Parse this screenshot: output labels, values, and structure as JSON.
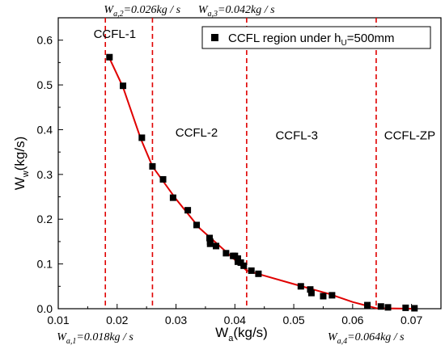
{
  "chart_data": {
    "type": "scatter",
    "xlabel": "W",
    "xlabel_sub": "a",
    "xlabel_unit": "(kg/s)",
    "ylabel": "W",
    "ylabel_sub": "w",
    "ylabel_unit": "(kg/s)",
    "xlim": [
      0.01,
      0.075
    ],
    "ylim": [
      0.0,
      0.65
    ],
    "xticks": [
      "0.01",
      "0.02",
      "0.03",
      "0.04",
      "0.05",
      "0.06",
      "0.07"
    ],
    "yticks": [
      "0.0",
      "0.1",
      "0.2",
      "0.3",
      "0.4",
      "0.5",
      "0.6"
    ],
    "grid": false,
    "legend": {
      "position": "top-right",
      "label_prefix": "CCFL region under h",
      "label_sub": "U",
      "label_suffix": "=500mm"
    },
    "markers": {
      "color": "#000000",
      "points": [
        [
          0.0187,
          0.562
        ],
        [
          0.021,
          0.498
        ],
        [
          0.0242,
          0.382
        ],
        [
          0.026,
          0.318
        ],
        [
          0.0278,
          0.289
        ],
        [
          0.0295,
          0.248
        ],
        [
          0.032,
          0.22
        ],
        [
          0.0335,
          0.187
        ],
        [
          0.0357,
          0.158
        ],
        [
          0.0358,
          0.15
        ],
        [
          0.0358,
          0.145
        ],
        [
          0.0368,
          0.14
        ],
        [
          0.0385,
          0.124
        ],
        [
          0.0397,
          0.118
        ],
        [
          0.04,
          0.118
        ],
        [
          0.0405,
          0.112
        ],
        [
          0.0405,
          0.105
        ],
        [
          0.041,
          0.103
        ],
        [
          0.0415,
          0.096
        ],
        [
          0.0428,
          0.085
        ],
        [
          0.044,
          0.078
        ],
        [
          0.0512,
          0.05
        ],
        [
          0.0528,
          0.043
        ],
        [
          0.053,
          0.035
        ],
        [
          0.055,
          0.028
        ],
        [
          0.0565,
          0.03
        ],
        [
          0.0625,
          0.008
        ],
        [
          0.0648,
          0.005
        ],
        [
          0.066,
          0.003
        ],
        [
          0.069,
          0.002
        ],
        [
          0.0705,
          0.001
        ]
      ]
    },
    "fit_line": {
      "color": "#e00000",
      "points": [
        [
          0.0185,
          0.565
        ],
        [
          0.021,
          0.495
        ],
        [
          0.024,
          0.38
        ],
        [
          0.026,
          0.318
        ],
        [
          0.03,
          0.245
        ],
        [
          0.034,
          0.18
        ],
        [
          0.038,
          0.133
        ],
        [
          0.042,
          0.085
        ],
        [
          0.05,
          0.055
        ],
        [
          0.056,
          0.033
        ],
        [
          0.06,
          0.015
        ],
        [
          0.064,
          0.001
        ],
        [
          0.0705,
          0.0
        ]
      ]
    },
    "vlines": {
      "color": "#e00000",
      "x": [
        0.018,
        0.026,
        0.042,
        0.064
      ]
    },
    "region_labels": [
      {
        "text": "CCFL-1",
        "x": 0.0196,
        "y": 0.605
      },
      {
        "text": "CCFL-2",
        "x": 0.0335,
        "y": 0.385
      },
      {
        "text": "CCFL-3",
        "x": 0.0505,
        "y": 0.378
      },
      {
        "text": "CCFL-ZP",
        "x": 0.0697,
        "y": 0.378
      }
    ],
    "annotations_top": [
      {
        "base": "W",
        "sub": "a,2",
        "value": "=0.026kg / s"
      },
      {
        "base": "W",
        "sub": "a,3",
        "value": "=0.042kg / s"
      }
    ],
    "annotations_bottom": [
      {
        "base": "W",
        "sub": "a,1",
        "value": "=0.018kg / s"
      },
      {
        "base": "W",
        "sub": "a,4",
        "value": "=0.064kg / s"
      }
    ]
  }
}
